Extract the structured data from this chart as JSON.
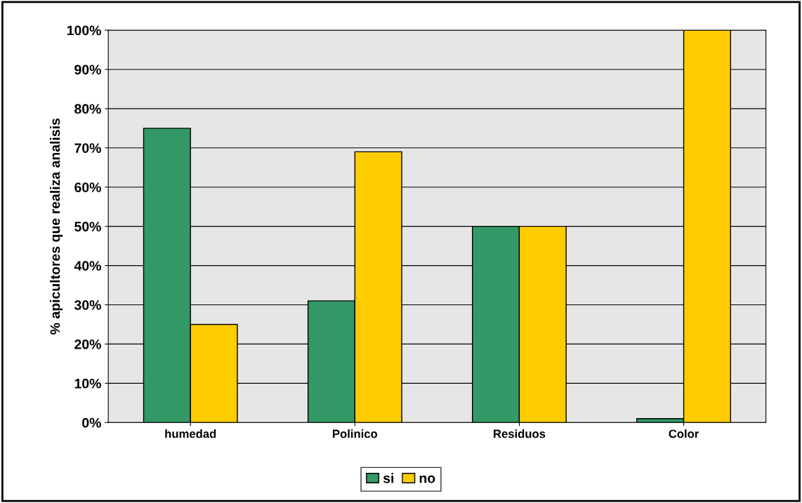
{
  "chart_data": {
    "type": "bar",
    "ylabel": "% apicultores que realiza analisis",
    "categories": [
      "humedad",
      "Polinico",
      "Residuos",
      "Color"
    ],
    "series": [
      {
        "name": "si",
        "color": "#339966",
        "values": [
          75,
          31,
          50,
          1
        ]
      },
      {
        "name": "no",
        "color": "#ffcc00",
        "values": [
          25,
          69,
          50,
          100
        ]
      }
    ],
    "ylim": [
      0,
      100
    ],
    "yticks": [
      {
        "value": 0,
        "label": "0%"
      },
      {
        "value": 10,
        "label": "10%"
      },
      {
        "value": 20,
        "label": "20%"
      },
      {
        "value": 30,
        "label": "30%"
      },
      {
        "value": 40,
        "label": "40%"
      },
      {
        "value": 50,
        "label": "50%"
      },
      {
        "value": 60,
        "label": "60%"
      },
      {
        "value": 70,
        "label": "70%"
      },
      {
        "value": 80,
        "label": "80%"
      },
      {
        "value": 90,
        "label": "90%"
      },
      {
        "value": 100,
        "label": "100%"
      }
    ],
    "grid": "y",
    "legend": "bottom"
  }
}
